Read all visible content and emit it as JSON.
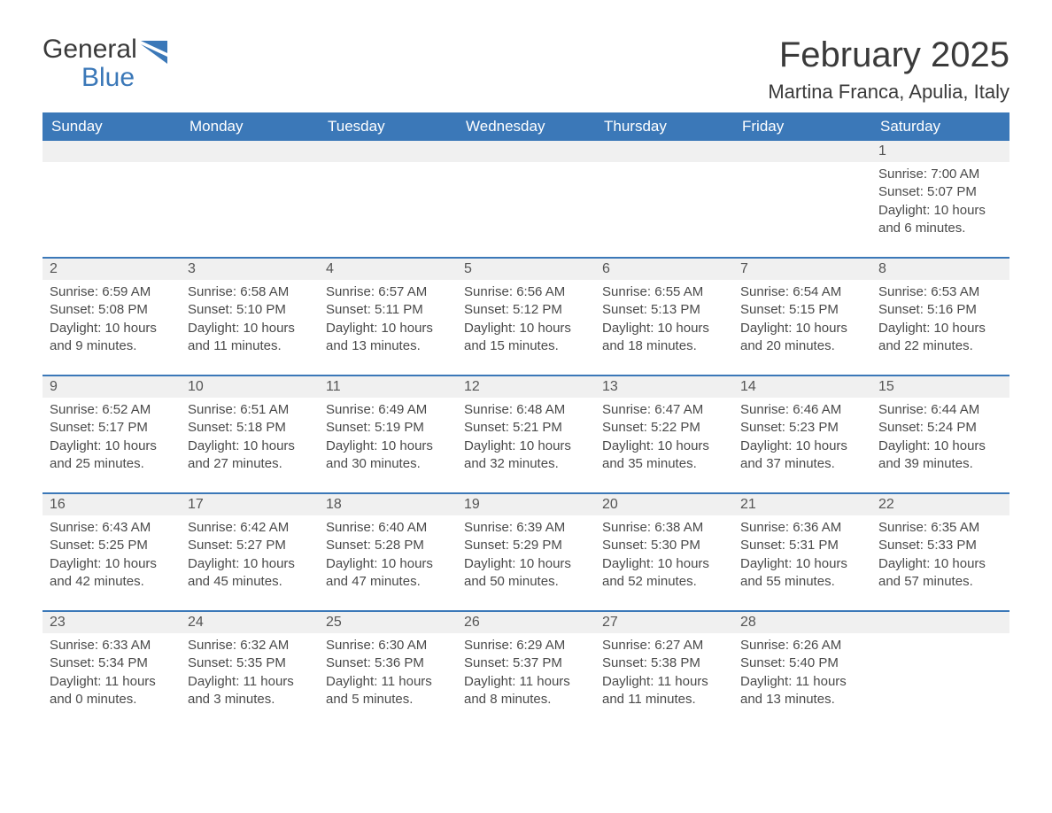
{
  "logo": {
    "general": "General",
    "blue": "Blue"
  },
  "title": "February 2025",
  "location": "Martina Franca, Apulia, Italy",
  "colors": {
    "header_bg": "#3b78b8",
    "header_text": "#ffffff",
    "daynum_bg": "#f0f0f0",
    "text": "#4a4a4a",
    "rule": "#3b78b8"
  },
  "day_headers": [
    "Sunday",
    "Monday",
    "Tuesday",
    "Wednesday",
    "Thursday",
    "Friday",
    "Saturday"
  ],
  "weeks": [
    [
      {
        "empty": true
      },
      {
        "empty": true
      },
      {
        "empty": true
      },
      {
        "empty": true
      },
      {
        "empty": true
      },
      {
        "empty": true
      },
      {
        "day": "1",
        "sunrise": "Sunrise: 7:00 AM",
        "sunset": "Sunset: 5:07 PM",
        "daylight": "Daylight: 10 hours and 6 minutes."
      }
    ],
    [
      {
        "day": "2",
        "sunrise": "Sunrise: 6:59 AM",
        "sunset": "Sunset: 5:08 PM",
        "daylight": "Daylight: 10 hours and 9 minutes."
      },
      {
        "day": "3",
        "sunrise": "Sunrise: 6:58 AM",
        "sunset": "Sunset: 5:10 PM",
        "daylight": "Daylight: 10 hours and 11 minutes."
      },
      {
        "day": "4",
        "sunrise": "Sunrise: 6:57 AM",
        "sunset": "Sunset: 5:11 PM",
        "daylight": "Daylight: 10 hours and 13 minutes."
      },
      {
        "day": "5",
        "sunrise": "Sunrise: 6:56 AM",
        "sunset": "Sunset: 5:12 PM",
        "daylight": "Daylight: 10 hours and 15 minutes."
      },
      {
        "day": "6",
        "sunrise": "Sunrise: 6:55 AM",
        "sunset": "Sunset: 5:13 PM",
        "daylight": "Daylight: 10 hours and 18 minutes."
      },
      {
        "day": "7",
        "sunrise": "Sunrise: 6:54 AM",
        "sunset": "Sunset: 5:15 PM",
        "daylight": "Daylight: 10 hours and 20 minutes."
      },
      {
        "day": "8",
        "sunrise": "Sunrise: 6:53 AM",
        "sunset": "Sunset: 5:16 PM",
        "daylight": "Daylight: 10 hours and 22 minutes."
      }
    ],
    [
      {
        "day": "9",
        "sunrise": "Sunrise: 6:52 AM",
        "sunset": "Sunset: 5:17 PM",
        "daylight": "Daylight: 10 hours and 25 minutes."
      },
      {
        "day": "10",
        "sunrise": "Sunrise: 6:51 AM",
        "sunset": "Sunset: 5:18 PM",
        "daylight": "Daylight: 10 hours and 27 minutes."
      },
      {
        "day": "11",
        "sunrise": "Sunrise: 6:49 AM",
        "sunset": "Sunset: 5:19 PM",
        "daylight": "Daylight: 10 hours and 30 minutes."
      },
      {
        "day": "12",
        "sunrise": "Sunrise: 6:48 AM",
        "sunset": "Sunset: 5:21 PM",
        "daylight": "Daylight: 10 hours and 32 minutes."
      },
      {
        "day": "13",
        "sunrise": "Sunrise: 6:47 AM",
        "sunset": "Sunset: 5:22 PM",
        "daylight": "Daylight: 10 hours and 35 minutes."
      },
      {
        "day": "14",
        "sunrise": "Sunrise: 6:46 AM",
        "sunset": "Sunset: 5:23 PM",
        "daylight": "Daylight: 10 hours and 37 minutes."
      },
      {
        "day": "15",
        "sunrise": "Sunrise: 6:44 AM",
        "sunset": "Sunset: 5:24 PM",
        "daylight": "Daylight: 10 hours and 39 minutes."
      }
    ],
    [
      {
        "day": "16",
        "sunrise": "Sunrise: 6:43 AM",
        "sunset": "Sunset: 5:25 PM",
        "daylight": "Daylight: 10 hours and 42 minutes."
      },
      {
        "day": "17",
        "sunrise": "Sunrise: 6:42 AM",
        "sunset": "Sunset: 5:27 PM",
        "daylight": "Daylight: 10 hours and 45 minutes."
      },
      {
        "day": "18",
        "sunrise": "Sunrise: 6:40 AM",
        "sunset": "Sunset: 5:28 PM",
        "daylight": "Daylight: 10 hours and 47 minutes."
      },
      {
        "day": "19",
        "sunrise": "Sunrise: 6:39 AM",
        "sunset": "Sunset: 5:29 PM",
        "daylight": "Daylight: 10 hours and 50 minutes."
      },
      {
        "day": "20",
        "sunrise": "Sunrise: 6:38 AM",
        "sunset": "Sunset: 5:30 PM",
        "daylight": "Daylight: 10 hours and 52 minutes."
      },
      {
        "day": "21",
        "sunrise": "Sunrise: 6:36 AM",
        "sunset": "Sunset: 5:31 PM",
        "daylight": "Daylight: 10 hours and 55 minutes."
      },
      {
        "day": "22",
        "sunrise": "Sunrise: 6:35 AM",
        "sunset": "Sunset: 5:33 PM",
        "daylight": "Daylight: 10 hours and 57 minutes."
      }
    ],
    [
      {
        "day": "23",
        "sunrise": "Sunrise: 6:33 AM",
        "sunset": "Sunset: 5:34 PM",
        "daylight": "Daylight: 11 hours and 0 minutes."
      },
      {
        "day": "24",
        "sunrise": "Sunrise: 6:32 AM",
        "sunset": "Sunset: 5:35 PM",
        "daylight": "Daylight: 11 hours and 3 minutes."
      },
      {
        "day": "25",
        "sunrise": "Sunrise: 6:30 AM",
        "sunset": "Sunset: 5:36 PM",
        "daylight": "Daylight: 11 hours and 5 minutes."
      },
      {
        "day": "26",
        "sunrise": "Sunrise: 6:29 AM",
        "sunset": "Sunset: 5:37 PM",
        "daylight": "Daylight: 11 hours and 8 minutes."
      },
      {
        "day": "27",
        "sunrise": "Sunrise: 6:27 AM",
        "sunset": "Sunset: 5:38 PM",
        "daylight": "Daylight: 11 hours and 11 minutes."
      },
      {
        "day": "28",
        "sunrise": "Sunrise: 6:26 AM",
        "sunset": "Sunset: 5:40 PM",
        "daylight": "Daylight: 11 hours and 13 minutes."
      },
      {
        "empty": true
      }
    ]
  ]
}
